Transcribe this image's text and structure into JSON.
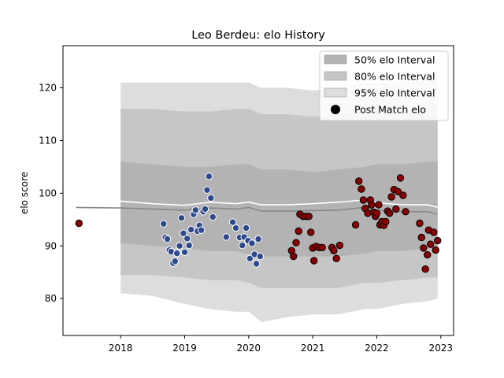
{
  "chart_data": {
    "type": "scatter",
    "title": "Leo Berdeu: elo History",
    "xlabel": "",
    "ylabel": "elo score",
    "xlim": [
      2017.1,
      2023.2
    ],
    "ylim": [
      73,
      128
    ],
    "xticks": [
      2018,
      2019,
      2020,
      2021,
      2022,
      2023
    ],
    "yticks": [
      80,
      90,
      100,
      110,
      120
    ],
    "grid": false,
    "legend_position": "top-right",
    "legend": [
      {
        "label": "50% elo Interval",
        "color": "#b3b3b3"
      },
      {
        "label": "80% elo Interval",
        "color": "#c6c6c6"
      },
      {
        "label": "95% elo Interval",
        "color": "#dddddd"
      },
      {
        "label": "Post Match elo",
        "color": "#000000"
      }
    ],
    "bands": {
      "x": [
        2018.0,
        2018.5,
        2019.0,
        2019.4,
        2019.8,
        2020.0,
        2020.2,
        2020.6,
        2021.0,
        2021.4,
        2021.8,
        2022.0,
        2022.4,
        2022.8,
        2022.95
      ],
      "ci95_upper": [
        121,
        121,
        121,
        121,
        121,
        121,
        120,
        120,
        119.5,
        120,
        121,
        121,
        121,
        121.5,
        122
      ],
      "ci95_lower": [
        81,
        80.5,
        79,
        78,
        77.5,
        77.5,
        75.5,
        76.5,
        77,
        77,
        78,
        78,
        79,
        79.5,
        80
      ],
      "ci80_upper": [
        116,
        116,
        115.5,
        115.5,
        116,
        116,
        115,
        115,
        114.5,
        115,
        115.5,
        116,
        116,
        116.5,
        117
      ],
      "ci80_lower": [
        84.5,
        84.5,
        84,
        83.5,
        83.5,
        83,
        82,
        82,
        82,
        82,
        83,
        83,
        83.5,
        84,
        84
      ],
      "ci50_upper": [
        106,
        105.5,
        105,
        105,
        105.5,
        105.5,
        104.5,
        104.5,
        104,
        104.5,
        105,
        105.5,
        105.5,
        106,
        106
      ],
      "ci50_lower": [
        90.5,
        90,
        89.5,
        89,
        89,
        88.5,
        88,
        88,
        88,
        88,
        88.5,
        89,
        89,
        89.5,
        89.5
      ]
    },
    "mean_line": {
      "x": [
        2017.3,
        2018.0,
        2018.5,
        2019.0,
        2019.4,
        2019.8,
        2020.0,
        2020.2,
        2020.6,
        2021.0,
        2021.4,
        2021.8,
        2022.0,
        2022.4,
        2022.8,
        2022.95
      ],
      "y": [
        97.3,
        97.2,
        97.0,
        96.8,
        97.2,
        97.0,
        97.3,
        96.6,
        96.6,
        96.7,
        96.8,
        97.3,
        96.8,
        96.5,
        96.5,
        96.0
      ]
    },
    "median_line": {
      "x": [
        2017.3,
        2018.0,
        2018.5,
        2019.0,
        2019.4,
        2019.8,
        2020.0,
        2020.2,
        2020.6,
        2021.0,
        2021.4,
        2021.8,
        2022.0,
        2022.4,
        2022.8,
        2022.95
      ],
      "y": [
        99.0,
        98.5,
        98.0,
        97.7,
        98.3,
        98.0,
        98.3,
        97.8,
        97.8,
        98.0,
        98.3,
        98.7,
        98.2,
        97.8,
        97.8,
        97.3
      ]
    },
    "series": [
      {
        "color": "#2e4a8c",
        "points": [
          [
            2018.67,
            94.2
          ],
          [
            2018.7,
            91.6
          ],
          [
            2018.73,
            91.3
          ],
          [
            2018.76,
            89.2
          ],
          [
            2018.79,
            88.9
          ],
          [
            2018.82,
            86.7
          ],
          [
            2018.85,
            87.1
          ],
          [
            2018.88,
            88.6
          ],
          [
            2018.92,
            90.0
          ],
          [
            2018.95,
            95.3
          ],
          [
            2018.98,
            92.4
          ],
          [
            2019.0,
            88.8
          ],
          [
            2019.04,
            91.4
          ],
          [
            2019.07,
            90.1
          ],
          [
            2019.1,
            93.1
          ],
          [
            2019.14,
            96.0
          ],
          [
            2019.17,
            96.8
          ],
          [
            2019.2,
            92.8
          ],
          [
            2019.23,
            93.9
          ],
          [
            2019.26,
            93.0
          ],
          [
            2019.29,
            96.5
          ],
          [
            2019.32,
            97.0
          ],
          [
            2019.35,
            100.6
          ],
          [
            2019.38,
            103.2
          ],
          [
            2019.41,
            99.1
          ],
          [
            2019.44,
            95.5
          ],
          [
            2019.65,
            91.7
          ],
          [
            2019.75,
            94.5
          ],
          [
            2019.8,
            93.4
          ],
          [
            2019.86,
            91.6
          ],
          [
            2019.9,
            90.1
          ],
          [
            2019.93,
            91.7
          ],
          [
            2019.96,
            93.4
          ],
          [
            2019.99,
            91.0
          ],
          [
            2020.02,
            87.6
          ],
          [
            2020.05,
            90.5
          ],
          [
            2020.09,
            88.4
          ],
          [
            2020.12,
            86.6
          ],
          [
            2020.15,
            91.3
          ],
          [
            2020.18,
            88.0
          ]
        ]
      },
      {
        "color": "#8b0000",
        "points": [
          [
            2017.35,
            94.3
          ],
          [
            2020.67,
            89.1
          ],
          [
            2020.7,
            88.0
          ],
          [
            2020.74,
            90.6
          ],
          [
            2020.78,
            92.8
          ],
          [
            2020.8,
            96.0
          ],
          [
            2020.85,
            95.6
          ],
          [
            2020.9,
            95.6
          ],
          [
            2020.94,
            95.6
          ],
          [
            2020.97,
            92.6
          ],
          [
            2021.0,
            89.6
          ],
          [
            2021.02,
            87.2
          ],
          [
            2021.05,
            89.9
          ],
          [
            2021.1,
            89.7
          ],
          [
            2021.15,
            89.7
          ],
          [
            2021.3,
            89.7
          ],
          [
            2021.33,
            89.1
          ],
          [
            2021.37,
            87.6
          ],
          [
            2021.42,
            90.1
          ],
          [
            2021.67,
            94.0
          ],
          [
            2021.72,
            102.3
          ],
          [
            2021.76,
            100.8
          ],
          [
            2021.79,
            98.7
          ],
          [
            2021.82,
            97.1
          ],
          [
            2021.86,
            96.2
          ],
          [
            2021.9,
            98.7
          ],
          [
            2021.92,
            97.8
          ],
          [
            2021.95,
            96.4
          ],
          [
            2021.98,
            95.6
          ],
          [
            2022.0,
            96.2
          ],
          [
            2022.03,
            97.8
          ],
          [
            2022.05,
            94.0
          ],
          [
            2022.08,
            94.6
          ],
          [
            2022.11,
            93.9
          ],
          [
            2022.14,
            94.6
          ],
          [
            2022.17,
            96.6
          ],
          [
            2022.2,
            96.2
          ],
          [
            2022.23,
            99.3
          ],
          [
            2022.27,
            100.7
          ],
          [
            2022.3,
            97.0
          ],
          [
            2022.33,
            100.3
          ],
          [
            2022.37,
            102.9
          ],
          [
            2022.41,
            99.6
          ],
          [
            2022.45,
            96.5
          ],
          [
            2022.67,
            94.3
          ],
          [
            2022.7,
            91.6
          ],
          [
            2022.73,
            89.6
          ],
          [
            2022.76,
            85.6
          ],
          [
            2022.79,
            88.3
          ],
          [
            2022.81,
            93.0
          ],
          [
            2022.84,
            90.3
          ],
          [
            2022.89,
            92.6
          ],
          [
            2022.92,
            89.2
          ],
          [
            2022.95,
            91.0
          ]
        ]
      }
    ]
  }
}
